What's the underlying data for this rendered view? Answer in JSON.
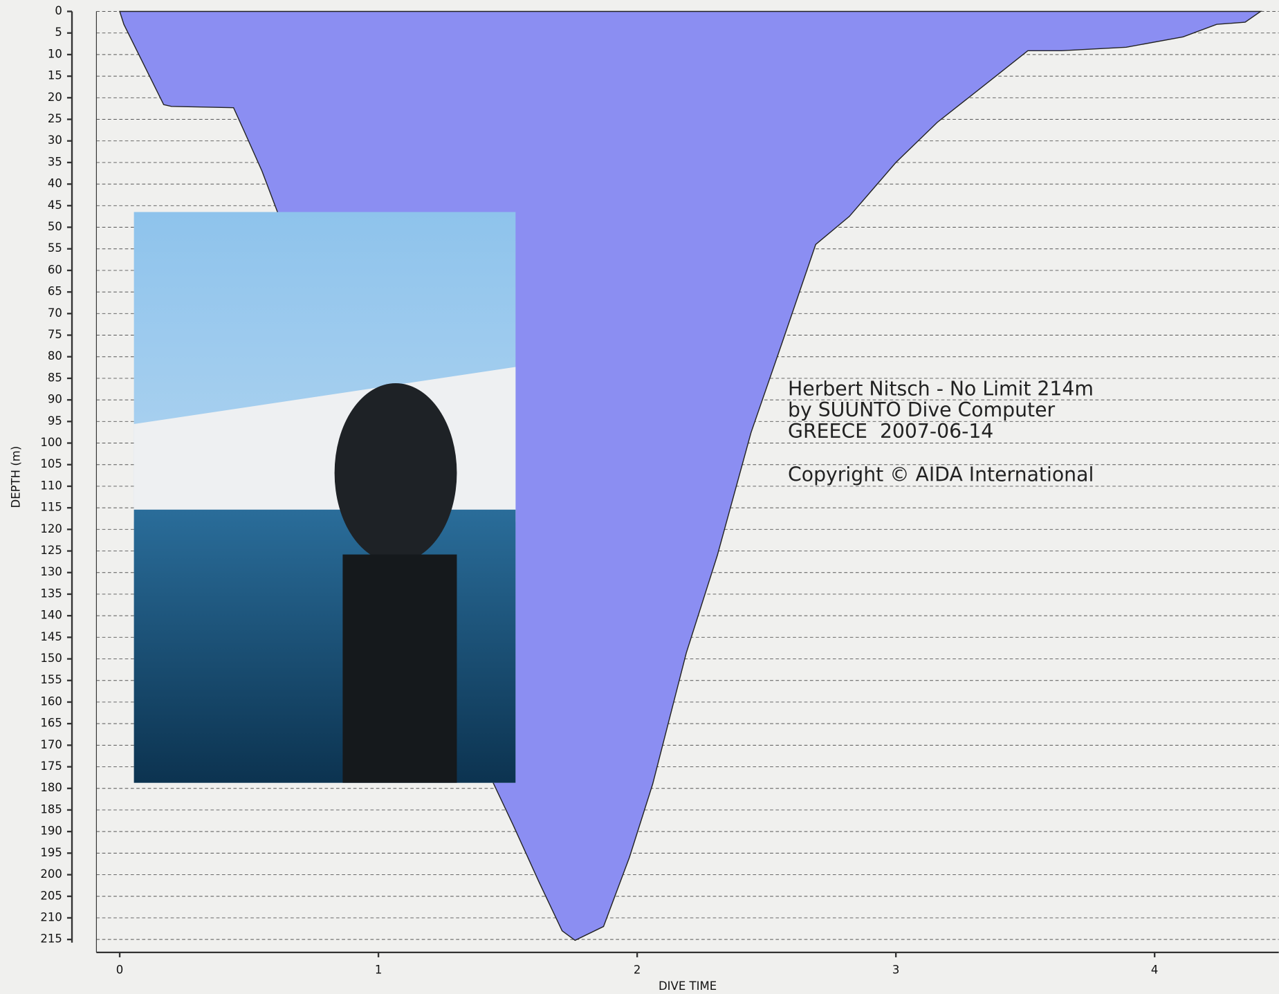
{
  "chart_data": {
    "type": "area",
    "x_label": "DIVE TIME",
    "y_label": "DEPTH (m)",
    "annotations": [
      "Herbert Nitsch - No Limit 214m",
      "by SUUNTO Dive Computer",
      "GREECE  2007-06-14",
      "Copyright © AIDA International"
    ],
    "x": [
      0,
      0.016,
      0.17,
      0.2,
      0.44,
      0.48,
      0.55,
      0.61,
      0.74,
      0.86,
      1.02,
      1.21,
      1.43,
      1.52,
      1.62,
      1.71,
      1.76,
      1.87,
      1.97,
      2.06,
      2.19,
      2.31,
      2.44,
      2.56,
      2.69,
      2.82,
      3.0,
      3.16,
      3.38,
      3.51,
      3.64,
      3.89,
      4.11,
      4.24,
      4.35,
      4.41
    ],
    "values": [
      0,
      3,
      21.6,
      22,
      22.3,
      27.6,
      37,
      46.5,
      73,
      103,
      130,
      158,
      177,
      188.4,
      201.6,
      213,
      215.2,
      212,
      196,
      179,
      148.6,
      126,
      97.6,
      76.8,
      54,
      47.5,
      35,
      25.7,
      15.3,
      9.1,
      9.1,
      8.3,
      5.9,
      3,
      2.5,
      0
    ],
    "color": "#8b8ef2",
    "xlim": [
      -0.09,
      4.48
    ],
    "xticks": [
      0,
      1,
      2,
      3,
      4
    ],
    "ylim": [
      0,
      218
    ],
    "yticks": [
      0,
      5,
      10,
      15,
      20,
      25,
      30,
      35,
      40,
      45,
      50,
      55,
      60,
      65,
      70,
      75,
      80,
      85,
      90,
      95,
      100,
      105,
      110,
      115,
      120,
      125,
      130,
      135,
      140,
      145,
      150,
      155,
      160,
      165,
      170,
      175,
      180,
      185,
      190,
      195,
      200,
      205,
      210,
      215
    ],
    "y_inverted": true,
    "grid": true
  }
}
